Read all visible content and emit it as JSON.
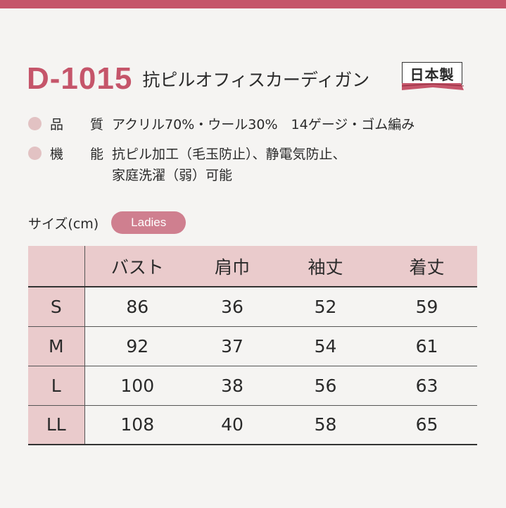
{
  "colors": {
    "accent": "#c5556a",
    "pink_light": "#eacbcc",
    "bullet": "#e2c2c3",
    "pill": "#cf7f8f"
  },
  "product": {
    "code": "D-1015",
    "name": "抗ピルオフィスカーディガン",
    "badge": "日本製"
  },
  "specs": [
    {
      "label_chars": [
        "品",
        "質"
      ],
      "lines": [
        "アクリル70%・ウール30%　14ゲージ・ゴム編み"
      ]
    },
    {
      "label_chars": [
        "機",
        "能"
      ],
      "lines": [
        "抗ピル加工（毛玉防止）、静電気防止、",
        "家庭洗濯（弱）可能"
      ]
    }
  ],
  "size_section": {
    "caption": "サイズ(cm)",
    "tag": "Ladies"
  },
  "size_table": {
    "headers": [
      "",
      "バスト",
      "肩巾",
      "袖丈",
      "着丈"
    ],
    "rows": [
      {
        "size": "S",
        "values": [
          "86",
          "36",
          "52",
          "59"
        ]
      },
      {
        "size": "M",
        "values": [
          "92",
          "37",
          "54",
          "61"
        ]
      },
      {
        "size": "L",
        "values": [
          "100",
          "38",
          "56",
          "63"
        ]
      },
      {
        "size": "LL",
        "values": [
          "108",
          "40",
          "58",
          "65"
        ]
      }
    ]
  }
}
